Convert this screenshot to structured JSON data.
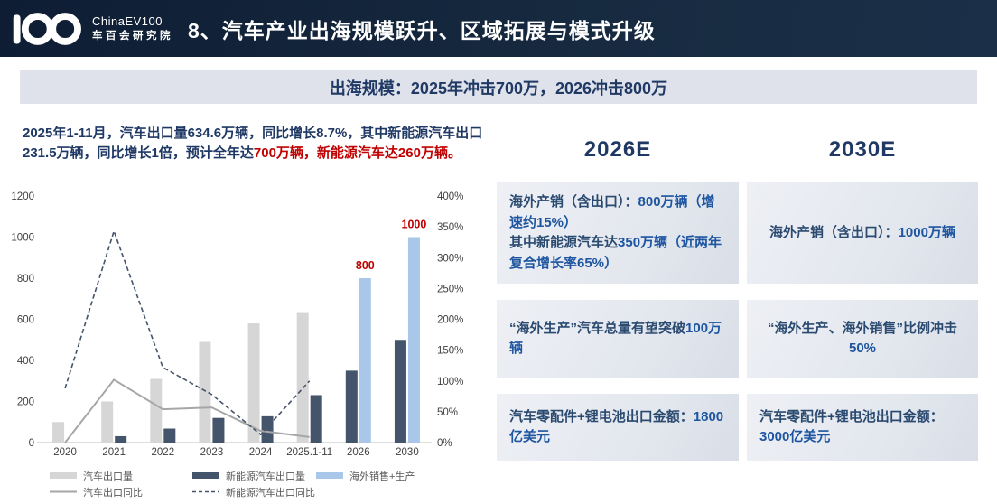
{
  "header": {
    "logo_number": "100",
    "logo_brand": "ChinaEV100",
    "logo_sub": "车百会研究院",
    "title": "8、汽车产业出海规模跃升、区域拓展与模式升级"
  },
  "banner": {
    "text": "出海规模：2025年冲击700万，2026冲击800万"
  },
  "intro": {
    "segments": [
      {
        "text": "2025年1-11月，汽车出口量634.6万辆，同比增长8.7%，其中新能源汽车出口231.5万辆，同比增长1倍，预计全年达",
        "red": false
      },
      {
        "text": "700万辆，新能源汽车达260万辆。",
        "red": true
      }
    ]
  },
  "chart_data": {
    "type": "bar",
    "subtype": "clustered bars with dual-axis yoy lines",
    "categories": [
      "2020",
      "2021",
      "2022",
      "2023",
      "2024",
      "2025.1-11",
      "2026",
      "2030"
    ],
    "bar_series": [
      {
        "name": "汽车出口量",
        "color": "#d6d6d6",
        "axis": "left",
        "values": [
          100,
          200,
          310,
          490,
          580,
          635,
          null,
          null
        ]
      },
      {
        "name": "新能源汽车出口量",
        "color": "#44546a",
        "axis": "left",
        "values": [
          null,
          31,
          68,
          120,
          128,
          231,
          350,
          500
        ]
      },
      {
        "name": "海外销售+生产",
        "color": "#a9c7e9",
        "axis": "left",
        "values": [
          null,
          null,
          null,
          null,
          null,
          null,
          800,
          1000
        ],
        "data_labels": [
          "",
          "",
          "",
          "",
          "",
          "",
          "800",
          "1000"
        ],
        "data_label_color": "#c00000"
      }
    ],
    "line_series": [
      {
        "name": "汽车出口同比",
        "style": "solid",
        "color": "#a6a6a6",
        "axis": "right",
        "values_pct": [
          0,
          102,
          54,
          57,
          19,
          9,
          null,
          null
        ]
      },
      {
        "name": "新能源汽车出口同比",
        "style": "dashed",
        "color": "#44546a",
        "axis": "right",
        "values_pct": [
          88,
          343,
          122,
          78,
          13,
          100,
          null,
          null
        ]
      }
    ],
    "left_axis": {
      "min": 0,
      "max": 1200,
      "step": 200,
      "ticks": [
        "0",
        "200",
        "400",
        "600",
        "800",
        "1000",
        "1200"
      ]
    },
    "right_axis": {
      "min_pct": 0,
      "max_pct": 400,
      "step_pct": 50,
      "ticks": [
        "0%",
        "50%",
        "100%",
        "150%",
        "200%",
        "250%",
        "300%",
        "350%",
        "400%"
      ]
    },
    "grid": false,
    "legend_position": "bottom-left",
    "legend": [
      "汽车出口量",
      "新能源汽车出口量",
      "海外销售+生产",
      "汽车出口同比",
      "新能源汽车出口同比"
    ]
  },
  "columns": [
    {
      "header": "2026E",
      "cards": [
        {
          "segments": [
            {
              "text": "海外产销（含出口）：",
              "bold": false
            },
            {
              "text": "800万辆（增速约15%）",
              "bold": true
            },
            {
              "text": "\n其中新能源汽车达",
              "bold": false
            },
            {
              "text": "350万辆（近两年复合增长率65%）",
              "bold": true
            }
          ]
        },
        {
          "segments": [
            {
              "text": "“海外生产”汽车总量有望突破",
              "bold": false
            },
            {
              "text": "100万辆",
              "bold": true
            }
          ]
        },
        {
          "segments": [
            {
              "text": "汽车零配件+锂电池出口金额：",
              "bold": false
            },
            {
              "text": "1800亿美元",
              "bold": true
            }
          ]
        }
      ]
    },
    {
      "header": "2030E",
      "cards": [
        {
          "segments": [
            {
              "text": "海外产销（含出口）：",
              "bold": false
            },
            {
              "text": "1000万辆",
              "bold": true
            }
          ]
        },
        {
          "segments": [
            {
              "text": "“海外生产、海外销售”比例冲击",
              "bold": false
            },
            {
              "text": "50%",
              "bold": true
            }
          ]
        },
        {
          "segments": [
            {
              "text": "汽车零配件+锂电池出口金额：",
              "bold": false
            },
            {
              "text": "3000亿美元",
              "bold": true
            }
          ]
        }
      ]
    }
  ],
  "colors": {
    "header_bg": "#14243d",
    "banner_bg": "#dfe2ea",
    "dark_blue_text": "#1f3864",
    "red": "#c00000",
    "card_bg": "#e7eaf1",
    "card_strong_blue": "#1d55a0",
    "bar_gray": "#d6d6d6",
    "bar_navy": "#44546a",
    "bar_lightblue": "#a9c7e9",
    "line_gray": "#a6a6a6",
    "axis_text": "#404040",
    "legend_text": "#595959"
  }
}
